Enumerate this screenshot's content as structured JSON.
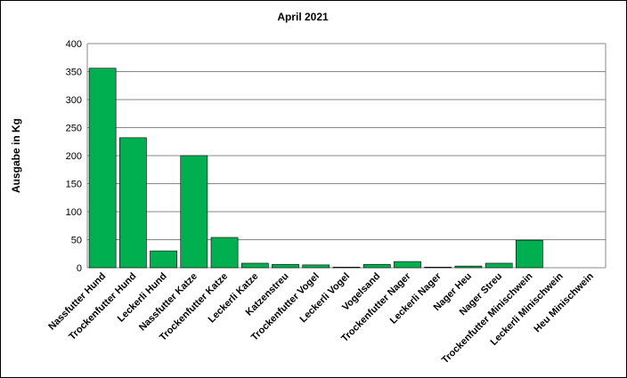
{
  "chart_data": {
    "type": "bar",
    "title": "April 2021",
    "y_label": "Ausgabe in Kg",
    "categories": [
      "Nassfutter Hund",
      "Trockenfutter Hund",
      "Leckerli Hund",
      "Nassfutter Katze",
      "Trockenfutter Katze",
      "Leckerli Katze",
      "Katzenstreu",
      "Trockenfutter Vogel",
      "Leckerli Vogel",
      "Vogelsand",
      "Trockenfutter Nager",
      "Leckerli Nager",
      "Nager Heu",
      "Nager Streu",
      "Trockenfutter Minischwein",
      "Leckerli Minischwein",
      "Heu Minischwein"
    ],
    "values": [
      356,
      232,
      30,
      200,
      54,
      8,
      6,
      5,
      1,
      6,
      11,
      1,
      3,
      8,
      49,
      0,
      0
    ],
    "color": "#00b050",
    "ylim": [
      0,
      400
    ],
    "yticks": [
      0,
      50,
      100,
      150,
      200,
      250,
      300,
      350,
      400
    ],
    "grid": true
  }
}
